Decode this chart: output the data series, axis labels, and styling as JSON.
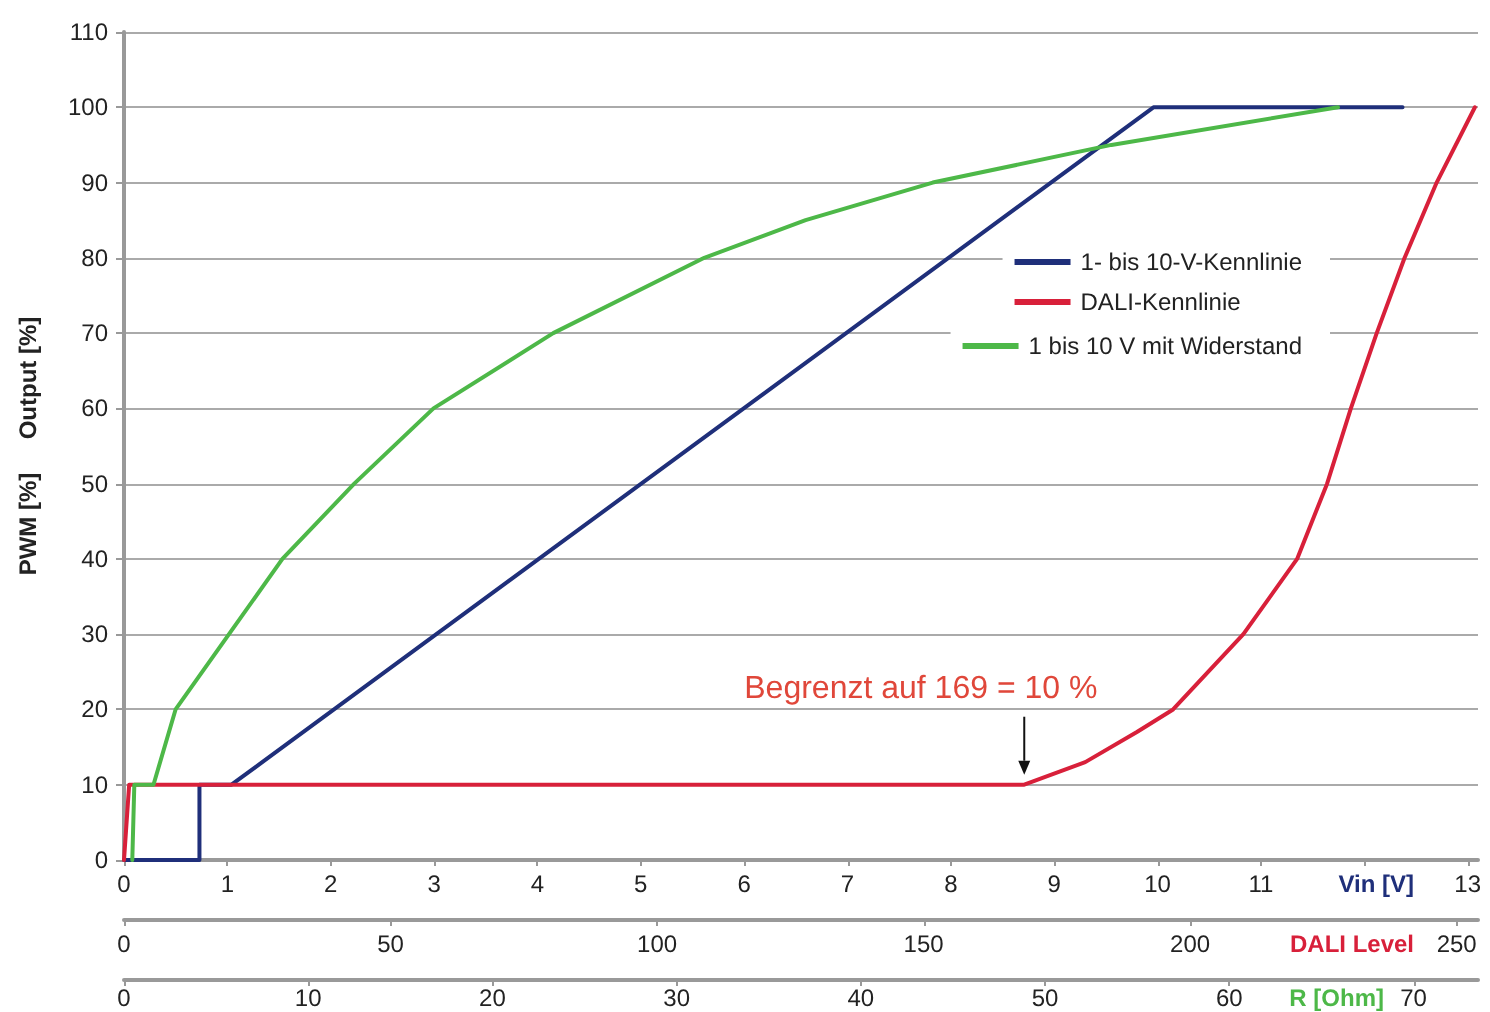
{
  "chart_data": [
    {
      "type": "line",
      "ylabel": "PWM [%]     Output [%]",
      "xlabel": "Vin [V]",
      "x2label": "DALI Level",
      "xlim": [
        0,
        13.1
      ],
      "xticks": [
        0,
        1,
        2,
        3,
        4,
        5,
        6,
        7,
        8,
        9,
        10,
        11,
        {
          "value": 12,
          "label": null
        },
        13
      ],
      "x2lim": [
        0,
        254
      ],
      "x2ticks": [
        0,
        50,
        100,
        150,
        200,
        250
      ],
      "ylim": [
        0,
        110
      ],
      "yticks": [
        0,
        10,
        20,
        30,
        40,
        50,
        60,
        70,
        80,
        90,
        100,
        110
      ],
      "grid": "y",
      "legend": "top right",
      "marker": "none",
      "line_style": "solid",
      "annotations": [
        {
          "text": "Begrenzt auf 169 = 10 %",
          "x": 8.71,
          "y": 10
        }
      ],
      "series": [
        {
          "name": "1- bis 10-V-Kennlinie",
          "color": "#1f2f7a",
          "x": [
            0,
            0.73,
            0.73,
            1.04,
            9.96,
            12.37
          ],
          "values": [
            0,
            0,
            10,
            10,
            100,
            100
          ]
        },
        {
          "name": "DALI-Kennlinie",
          "color": "#d8203a",
          "x": [
            0,
            0.05,
            8.71,
            9.3,
            9.8,
            10.15,
            10.83,
            11.35,
            11.64,
            11.87,
            12.12,
            12.39,
            12.7,
            13.07
          ],
          "values": [
            0,
            10,
            10,
            13,
            17,
            20,
            30,
            40,
            50,
            60,
            70,
            80,
            90,
            100
          ]
        }
      ]
    },
    {
      "type": "line",
      "xlabel": "R [Ohm]",
      "xlim": [
        0,
        73.5
      ],
      "xticks": [
        0,
        10,
        20,
        30,
        40,
        50,
        60,
        70
      ],
      "ylim": [
        0,
        110
      ],
      "tick_labels": "x",
      "legend": "top right",
      "marker": "none",
      "line_style": "solid",
      "series": [
        {
          "name": "1 bis 10 V mit Widerstand",
          "color": "#4db848",
          "x": [
            0.45,
            0.56,
            1.6,
            2.8,
            5.7,
            8.6,
            12.5,
            16.8,
            23.3,
            31.5,
            37,
            43.9,
            53.6,
            65.9
          ],
          "values": [
            0,
            10,
            10,
            20,
            30,
            40,
            50,
            60,
            70,
            80,
            85,
            90,
            95,
            100
          ]
        }
      ]
    }
  ]
}
